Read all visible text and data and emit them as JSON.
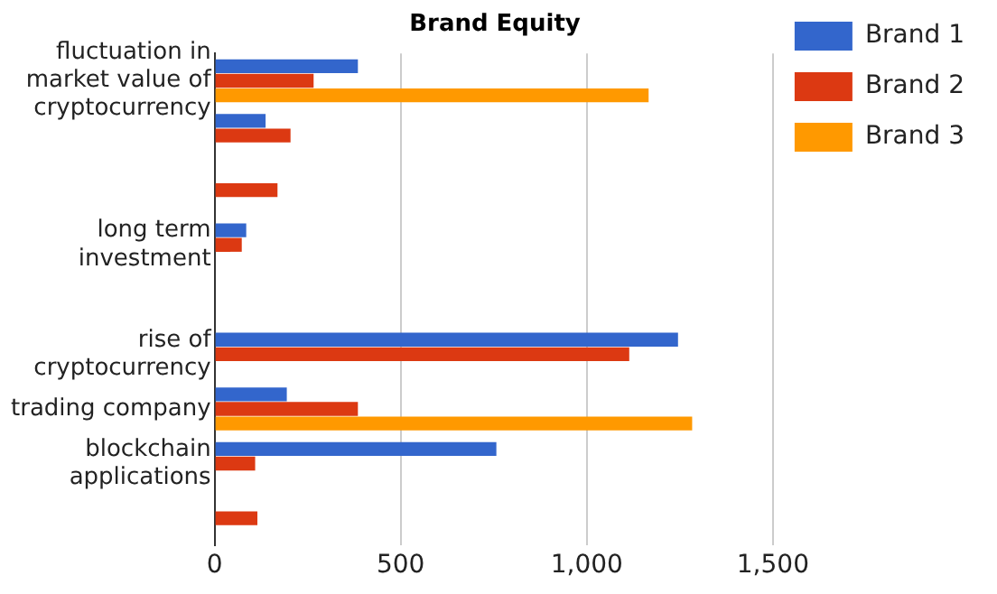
{
  "chart_data": {
    "type": "bar",
    "orientation": "horizontal",
    "title": "Brand Equity",
    "categories": [
      "fluctuation in market value of cryptocurrency",
      null,
      null,
      "long term investment",
      null,
      "rise of cryptocurrency",
      "trading company",
      "blockchain applications",
      null
    ],
    "series": [
      {
        "name": "Brand 1",
        "color": "#3366cc",
        "values": [
          385,
          137,
          null,
          85,
          null,
          1245,
          194,
          757,
          null
        ]
      },
      {
        "name": "Brand 2",
        "color": "#dc3912",
        "values": [
          266,
          204,
          169,
          73,
          null,
          1114,
          385,
          109,
          115
        ]
      },
      {
        "name": "Brand 3",
        "color": "#ff9900",
        "values": [
          1166,
          null,
          null,
          null,
          null,
          null,
          1283,
          null,
          null
        ]
      }
    ],
    "xlim": [
      0,
      1500
    ],
    "xticks": [
      0,
      500,
      {
        "value": 1000,
        "label": "1,000"
      },
      {
        "value": 1500,
        "label": "1,500"
      }
    ],
    "grid": "x",
    "legend": "right"
  }
}
